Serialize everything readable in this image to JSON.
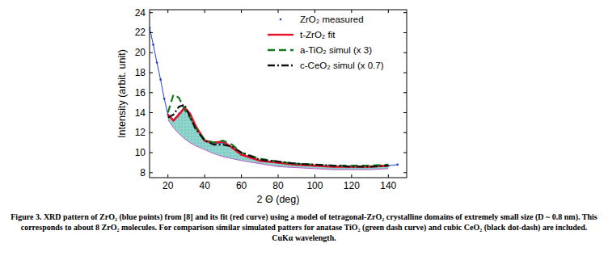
{
  "chart_data": {
    "type": "line",
    "x_label": "2 Θ (deg)",
    "y_label": "Intensity (arbit. unit)",
    "caption": "Figure 3. XRD pattern of ZrO₂ (blue points) from [8] and its fit (red curve) using a model of tetragonal-ZrO₂ crystalline domains of extremely small size (D ~ 0.8 nm). This corresponds to about 8 ZrO₂ molecules. For comparison similar simulated patters for anatase TiO₂ (green dash curve) and cubic CeO₂ (black dot-dash) are included. CuKα wavelength.",
    "x": [
      10,
      12,
      14,
      16,
      18,
      20,
      23,
      26,
      29,
      32,
      35,
      40,
      45,
      50,
      55,
      60,
      70,
      80,
      90,
      100,
      110,
      120,
      130,
      140,
      145
    ],
    "series": [
      {
        "name": "ZrO₂ measured",
        "color": "#1f3fd6",
        "marker": "point",
        "line_style": "solid",
        "values": [
          22.5,
          20.8,
          19.0,
          17.3,
          15.4,
          13.8,
          13.3,
          13.9,
          14.4,
          13.8,
          12.6,
          11.2,
          10.9,
          11.0,
          10.5,
          9.8,
          9.2,
          9.0,
          8.8,
          8.7,
          8.6,
          8.6,
          8.6,
          8.7,
          8.8
        ]
      },
      {
        "name": "t-ZrO₂ fit",
        "color": "#e8102a",
        "line_style": "solid",
        "values": [
          null,
          null,
          null,
          null,
          null,
          13.8,
          13.2,
          13.8,
          14.5,
          13.9,
          12.7,
          11.2,
          11.0,
          11.1,
          10.5,
          9.8,
          9.2,
          9.0,
          8.8,
          8.7,
          8.6,
          8.6,
          8.6,
          8.7,
          null
        ]
      },
      {
        "name": "a-TiO₂ simul (x 3)",
        "color": "#157a1d",
        "line_style": "dashed",
        "values": [
          null,
          null,
          null,
          null,
          null,
          14.0,
          15.8,
          15.5,
          14.3,
          13.5,
          12.5,
          11.3,
          11.0,
          11.2,
          10.8,
          10.0,
          9.4,
          9.1,
          8.9,
          8.8,
          8.7,
          8.7,
          8.7,
          8.8,
          null
        ]
      },
      {
        "name": "c-CeO₂ simul (x 0.7)",
        "color": "#111111",
        "line_style": "dashdot",
        "values": [
          null,
          null,
          null,
          null,
          null,
          13.5,
          13.8,
          14.6,
          14.8,
          13.6,
          12.4,
          11.2,
          10.8,
          10.8,
          10.6,
          10.0,
          9.3,
          9.1,
          8.9,
          8.8,
          8.7,
          8.6,
          8.6,
          8.7,
          null
        ]
      },
      {
        "type": "area",
        "color": "#c45ac8",
        "line_style": "solid",
        "values": [
          null,
          null,
          null,
          null,
          null,
          13.3,
          12.5,
          11.9,
          11.4,
          11.0,
          10.7,
          10.3,
          9.9,
          9.6,
          9.4,
          9.2,
          8.9,
          8.6,
          8.5,
          8.4,
          8.3,
          8.3,
          8.3,
          8.4,
          null
        ]
      }
    ],
    "xlim": [
      10,
      150
    ],
    "ylim": [
      7.5,
      24.3
    ],
    "xticks": [
      20,
      40,
      60,
      80,
      100,
      120,
      140
    ],
    "yticks": [
      8,
      10,
      12,
      14,
      16,
      18,
      20,
      22,
      24
    ],
    "grid": false,
    "legend": "top-right"
  }
}
